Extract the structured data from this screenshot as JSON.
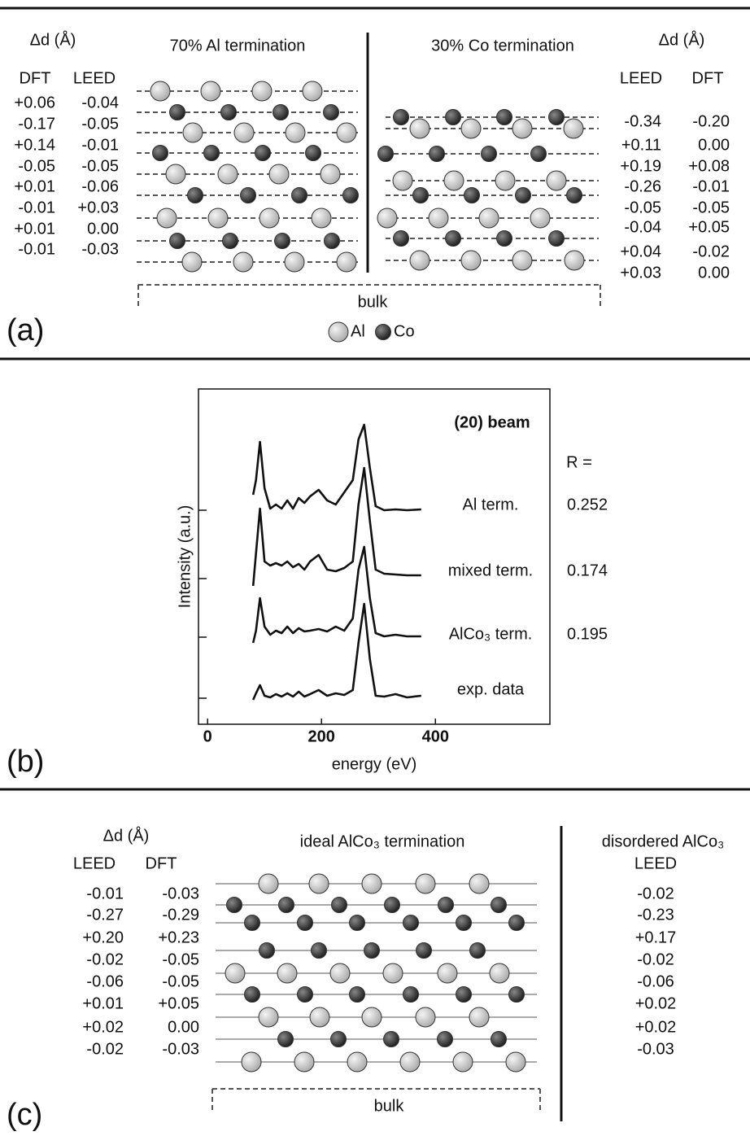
{
  "panel_a": {
    "label": "(a)",
    "left": {
      "delta": "Δd (Å)",
      "col1": "DFT",
      "col2": "LEED",
      "rows": [
        [
          "+0.06",
          "-0.04"
        ],
        [
          "-0.17",
          "-0.05"
        ],
        [
          "+0.14",
          "-0.01"
        ],
        [
          "-0.05",
          "-0.05"
        ],
        [
          "+0.01",
          "-0.06"
        ],
        [
          "-0.01",
          "+0.03"
        ],
        [
          "+0.01",
          "0.00"
        ],
        [
          "-0.01",
          "-0.03"
        ]
      ]
    },
    "title_left": "70% Al termination",
    "title_right": "30% Co termination",
    "right": {
      "delta": "Δd (Å)",
      "col1": "LEED",
      "col2": "DFT",
      "rows": [
        [
          "-0.34",
          "-0.20"
        ],
        [
          "+0.11",
          "0.00"
        ],
        [
          "+0.19",
          "+0.08"
        ],
        [
          "-0.26",
          "-0.01"
        ],
        [
          "-0.05",
          "-0.05"
        ],
        [
          "-0.04",
          "+0.05"
        ],
        [
          "+0.04",
          "-0.02"
        ],
        [
          "+0.03",
          "0.00"
        ]
      ]
    },
    "bulk": "bulk",
    "legend": {
      "al": "Al",
      "co": "Co"
    }
  },
  "chart_data": {
    "type": "line",
    "label": "(b)",
    "title": "(20) beam",
    "r_label": "R =",
    "xlabel": "energy (eV)",
    "ylabel": "Intensity (a.u.)",
    "xlim": [
      -16,
      601
    ],
    "xticks": [
      0,
      200,
      400
    ],
    "ylim": [
      0,
      412
    ],
    "x": [
      80,
      85,
      92,
      100,
      110,
      120,
      130,
      140,
      150,
      160,
      170,
      180,
      195,
      210,
      225,
      240,
      255,
      265,
      275,
      285,
      295,
      310,
      330,
      350,
      375
    ],
    "series": [
      {
        "name": "Al term.",
        "r": 0.252,
        "color": "#111111",
        "values": [
          282,
          300,
          347,
          290,
          265,
          270,
          265,
          275,
          265,
          278,
          272,
          280,
          288,
          275,
          270,
          285,
          300,
          350,
          368,
          315,
          268,
          263,
          264,
          263,
          264
        ]
      },
      {
        "name": "mixed term.",
        "r": 0.174,
        "color": "#111111",
        "values": [
          170,
          210,
          265,
          200,
          195,
          198,
          195,
          200,
          193,
          197,
          190,
          200,
          208,
          190,
          188,
          192,
          200,
          270,
          315,
          250,
          190,
          185,
          184,
          183,
          183
        ]
      },
      {
        "name": "AlCo₃ term.",
        "r": 0.195,
        "color": "#111111",
        "values": [
          100,
          115,
          155,
          120,
          110,
          115,
          112,
          120,
          112,
          118,
          114,
          115,
          117,
          114,
          120,
          115,
          130,
          190,
          218,
          155,
          112,
          108,
          110,
          108,
          108
        ]
      },
      {
        "name": "exp. data",
        "color": "#111111",
        "values": [
          30,
          38,
          48,
          35,
          33,
          37,
          34,
          38,
          34,
          40,
          34,
          37,
          42,
          35,
          38,
          36,
          42,
          100,
          148,
          80,
          35,
          34,
          37,
          33,
          35
        ]
      }
    ]
  },
  "panel_c": {
    "label": "(c)",
    "left": {
      "delta": "Δd (Å)",
      "col1": "LEED",
      "col2": "DFT",
      "rows": [
        [
          "-0.01",
          "-0.03"
        ],
        [
          "-0.27",
          "-0.29"
        ],
        [
          "+0.20",
          "+0.23"
        ],
        [
          "-0.02",
          "-0.05"
        ],
        [
          "-0.06",
          "-0.05"
        ],
        [
          "+0.01",
          "+0.05"
        ],
        [
          "+0.02",
          "0.00"
        ],
        [
          "-0.02",
          "-0.03"
        ]
      ]
    },
    "title": "ideal AlCo₃ termination",
    "right": {
      "title": "disordered AlCo₃",
      "col1": "LEED",
      "rows": [
        "-0.02",
        "-0.23",
        "+0.17",
        "-0.02",
        "-0.06",
        "+0.02",
        "+0.02",
        "-0.03"
      ]
    },
    "bulk": "bulk"
  }
}
